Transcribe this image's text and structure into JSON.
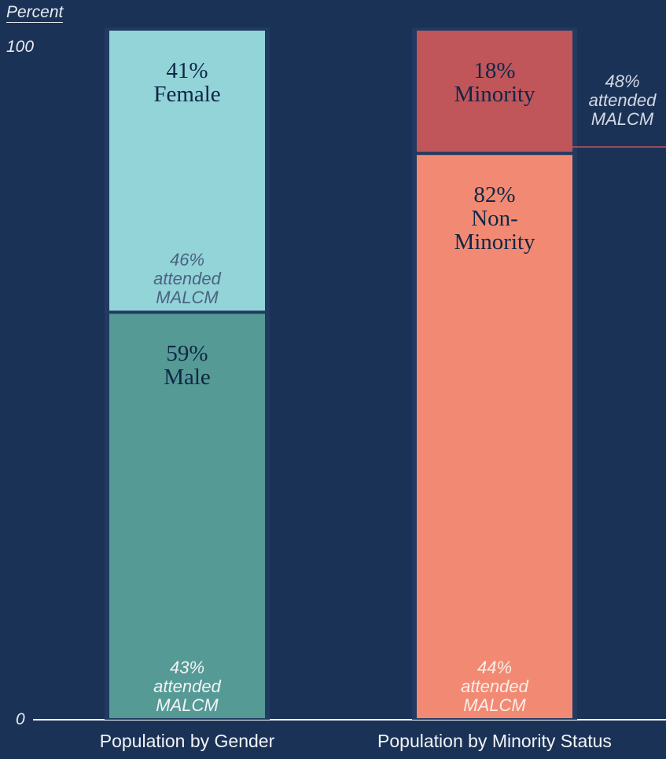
{
  "chart_data": {
    "type": "stacked_bar",
    "y_label": "Percent",
    "ylim": [
      0,
      100
    ],
    "yticks": [
      0,
      100
    ],
    "categories": [
      "Population by Gender",
      "Population by Minority Status"
    ],
    "stacks": [
      [
        {
          "name": "Male",
          "value": 59,
          "value_label": "59%",
          "color": "#559a94",
          "note_value": 43,
          "note_label": "43%",
          "note": "attended MALCM",
          "note_color": "#f2f4f7"
        },
        {
          "name": "Female",
          "value": 41,
          "value_label": "41%",
          "color": "#93d4d8",
          "note_value": 46,
          "note_label": "46%",
          "note": "attended MALCM",
          "note_color": "#4b6382"
        }
      ],
      [
        {
          "name": "Non-Minority",
          "value": 82,
          "value_label": "82%",
          "color": "#f28a73",
          "note_value": 44,
          "note_label": "44%",
          "note": "attended MALCM",
          "note_color": "#fbeee9"
        },
        {
          "name": "Minority",
          "value": 18,
          "value_label": "18%",
          "color": "#c0555a",
          "note_value": 48,
          "note_label": "48%",
          "note": "attended MALCM",
          "note_color": "#d3d9e3"
        }
      ]
    ]
  }
}
